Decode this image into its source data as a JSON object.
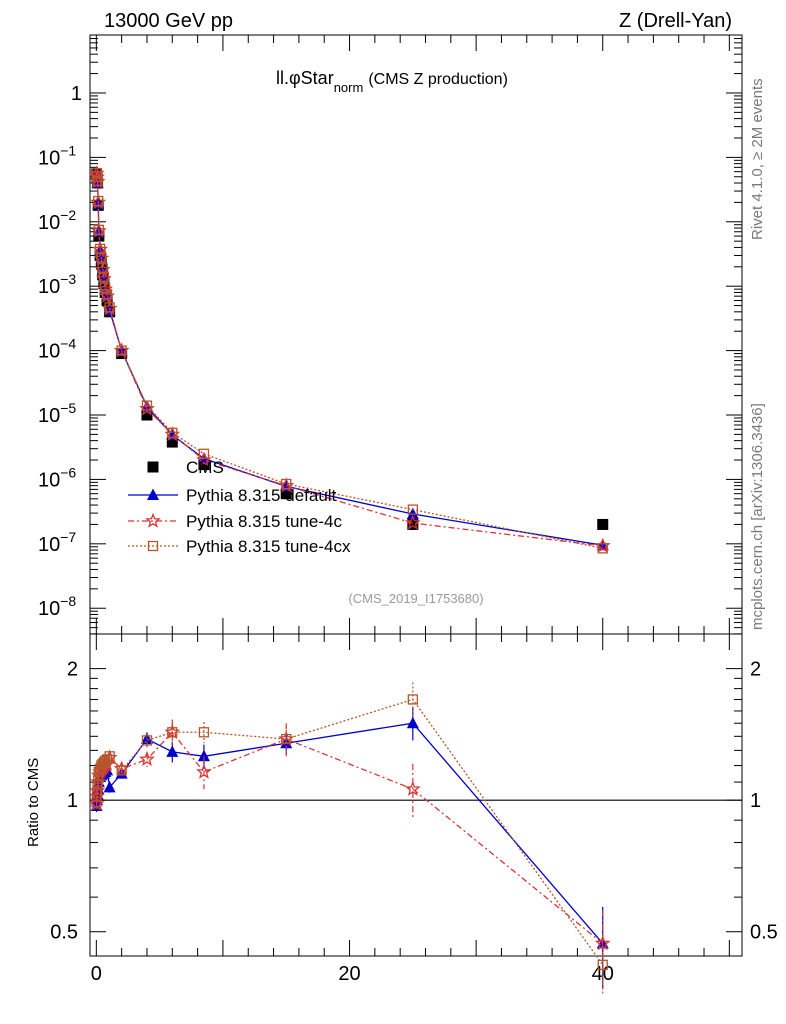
{
  "chart_data": [
    {
      "type": "scatter",
      "panel": "main",
      "title": "ll.φStar",
      "title_subscript": "norm",
      "title_suffix": "(CMS Z production)",
      "header_left": "13000 GeV pp",
      "header_right": "Z (Drell-Yan)",
      "watermark": "(CMS_2019_I1753680)",
      "side_text_top": "Rivet 4.1.0, ≥ 2M events",
      "side_text_bottom": "mcplots.cern.ch [arXiv:1306.3436]",
      "yscale": "log",
      "xlim": [
        -0.5,
        51
      ],
      "ylim_log10": [
        -8.4,
        0.9
      ],
      "ytick_labels": {
        "0": "1",
        "-1": "10",
        "-2": "10",
        "-3": "10",
        "-4": "10",
        "-5": "10",
        "-6": "10",
        "-7": "10",
        "-8": "10"
      },
      "ytick_exponents": {
        "-1": "−1",
        "-2": "−2",
        "-3": "−3",
        "-4": "−4",
        "-5": "−5",
        "-6": "−6",
        "-7": "−7",
        "-8": "−8"
      },
      "legend": [
        "CMS",
        "Pythia 8.315 default",
        "Pythia 8.315 tune-4c",
        "Pythia 8.315 tune-4cx"
      ],
      "series": [
        {
          "name": "CMS",
          "marker": "square",
          "color": "#000000",
          "x": [
            0.02,
            0.06,
            0.1,
            0.15,
            0.2,
            0.3,
            0.4,
            0.5,
            0.6,
            0.7,
            0.85,
            1.05,
            2.0,
            4.0,
            6.0,
            8.5,
            15.0,
            25.0,
            40.0
          ],
          "y": [
            0.055,
            0.048,
            0.04,
            0.018,
            0.006,
            0.003,
            0.0022,
            0.0015,
            0.0011,
            0.0008,
            0.0006,
            0.0004,
            9e-05,
            1e-05,
            3.8e-06,
            1.7e-06,
            6e-07,
            2e-07,
            2e-07
          ]
        },
        {
          "name": "Pythia 8.315 default",
          "marker": "triangle",
          "color": "#0000cc",
          "dash": "",
          "x": [
            0.02,
            0.06,
            0.1,
            0.15,
            0.2,
            0.3,
            0.4,
            0.5,
            0.6,
            0.7,
            0.85,
            1.05,
            2.0,
            4.0,
            6.0,
            8.5,
            15.0,
            25.0,
            40.0
          ],
          "y": [
            0.055,
            0.048,
            0.04,
            0.019,
            0.007,
            0.0036,
            0.0026,
            0.0018,
            0.0013,
            0.0009,
            0.0007,
            0.00042,
            0.0001,
            1.35e-05,
            4.9e-06,
            2.1e-06,
            7.8e-07,
            2.9e-07,
            9.5e-08
          ]
        },
        {
          "name": "Pythia 8.315 tune-4c",
          "marker": "star",
          "color": "#dd3333",
          "dash": "6,3,2,3",
          "x": [
            0.02,
            0.06,
            0.1,
            0.15,
            0.2,
            0.3,
            0.4,
            0.5,
            0.6,
            0.7,
            0.85,
            1.05,
            2.0,
            4.0,
            6.0,
            8.5,
            15.0,
            25.0,
            40.0
          ],
          "y": [
            0.056,
            0.049,
            0.042,
            0.02,
            0.0072,
            0.0037,
            0.0027,
            0.0018,
            0.0013,
            0.0009,
            0.0007,
            0.00045,
            0.0001,
            1.25e-05,
            5e-06,
            2e-06,
            8e-07,
            2.1e-07,
            9.3e-08
          ]
        },
        {
          "name": "Pythia 8.315 tune-4cx",
          "marker": "open-square",
          "color": "#b5562a",
          "dash": "2,2",
          "x": [
            0.02,
            0.06,
            0.1,
            0.15,
            0.2,
            0.3,
            0.4,
            0.5,
            0.6,
            0.7,
            0.85,
            1.05,
            2.0,
            4.0,
            6.0,
            8.5,
            15.0,
            25.0,
            40.0
          ],
          "y": [
            0.057,
            0.05,
            0.043,
            0.021,
            0.0075,
            0.0038,
            0.0028,
            0.0019,
            0.0014,
            0.00095,
            0.00075,
            0.00047,
            0.0001,
            1.4e-05,
            5.3e-06,
            2.5e-06,
            8.5e-07,
            3.4e-07,
            8.5e-08
          ]
        }
      ]
    },
    {
      "type": "scatter",
      "panel": "ratio",
      "ylabel": "Ratio to CMS",
      "yscale": "log",
      "xlim": [
        -0.5,
        51
      ],
      "ylim": [
        0.44,
        2.4
      ],
      "yticks": [
        0.5,
        1,
        2
      ],
      "ytick_labels": [
        "0.5",
        "1",
        "2"
      ],
      "xticks": [
        0,
        20,
        40
      ],
      "xtick_labels": [
        "0",
        "20",
        "40"
      ],
      "reference_line": 1,
      "series": [
        {
          "name": "Pythia 8.315 default",
          "marker": "triangle",
          "color": "#0000cc",
          "dash": "",
          "x": [
            0.02,
            0.06,
            0.1,
            0.15,
            0.2,
            0.3,
            0.4,
            0.5,
            0.6,
            0.7,
            0.85,
            1.05,
            2.0,
            4.0,
            6.0,
            8.5,
            15.0,
            25.0,
            40.0
          ],
          "y": [
            0.97,
            1.0,
            1.03,
            1.06,
            1.1,
            1.13,
            1.14,
            1.15,
            1.15,
            1.16,
            1.17,
            1.07,
            1.15,
            1.38,
            1.29,
            1.26,
            1.35,
            1.5,
            0.47
          ],
          "err": [
            0.03,
            0.03,
            0.03,
            0.03,
            0.03,
            0.03,
            0.03,
            0.03,
            0.03,
            0.03,
            0.03,
            0.03,
            0.03,
            0.05,
            0.07,
            0.08,
            0.08,
            0.13,
            0.1
          ]
        },
        {
          "name": "Pythia 8.315 tune-4c",
          "marker": "star",
          "color": "#dd3333",
          "dash": "6,3,2,3",
          "x": [
            0.02,
            0.06,
            0.1,
            0.15,
            0.2,
            0.3,
            0.4,
            0.5,
            0.6,
            0.7,
            0.85,
            1.05,
            2.0,
            4.0,
            6.0,
            8.5,
            15.0,
            25.0,
            40.0
          ],
          "y": [
            0.98,
            1.02,
            1.05,
            1.1,
            1.14,
            1.16,
            1.17,
            1.18,
            1.19,
            1.2,
            1.21,
            1.25,
            1.18,
            1.24,
            1.43,
            1.16,
            1.38,
            1.06,
            0.47
          ],
          "err": [
            0.03,
            0.03,
            0.03,
            0.03,
            0.03,
            0.03,
            0.03,
            0.03,
            0.03,
            0.03,
            0.03,
            0.03,
            0.03,
            0.05,
            0.1,
            0.1,
            0.12,
            0.15,
            0.09
          ]
        },
        {
          "name": "Pythia 8.315 tune-4cx",
          "marker": "open-square",
          "color": "#b5562a",
          "dash": "2,2",
          "x": [
            0.02,
            0.06,
            0.1,
            0.15,
            0.2,
            0.3,
            0.4,
            0.5,
            0.6,
            0.7,
            0.85,
            1.05,
            2.0,
            4.0,
            6.0,
            8.5,
            15.0,
            25.0,
            40.0
          ],
          "y": [
            0.99,
            1.04,
            1.08,
            1.12,
            1.16,
            1.18,
            1.2,
            1.21,
            1.22,
            1.23,
            1.24,
            1.26,
            1.17,
            1.37,
            1.43,
            1.43,
            1.38,
            1.7,
            0.42
          ],
          "err": [
            0.03,
            0.03,
            0.03,
            0.03,
            0.03,
            0.03,
            0.03,
            0.03,
            0.03,
            0.03,
            0.03,
            0.03,
            0.03,
            0.05,
            0.07,
            0.08,
            0.1,
            0.16,
            0.06
          ]
        }
      ]
    }
  ]
}
